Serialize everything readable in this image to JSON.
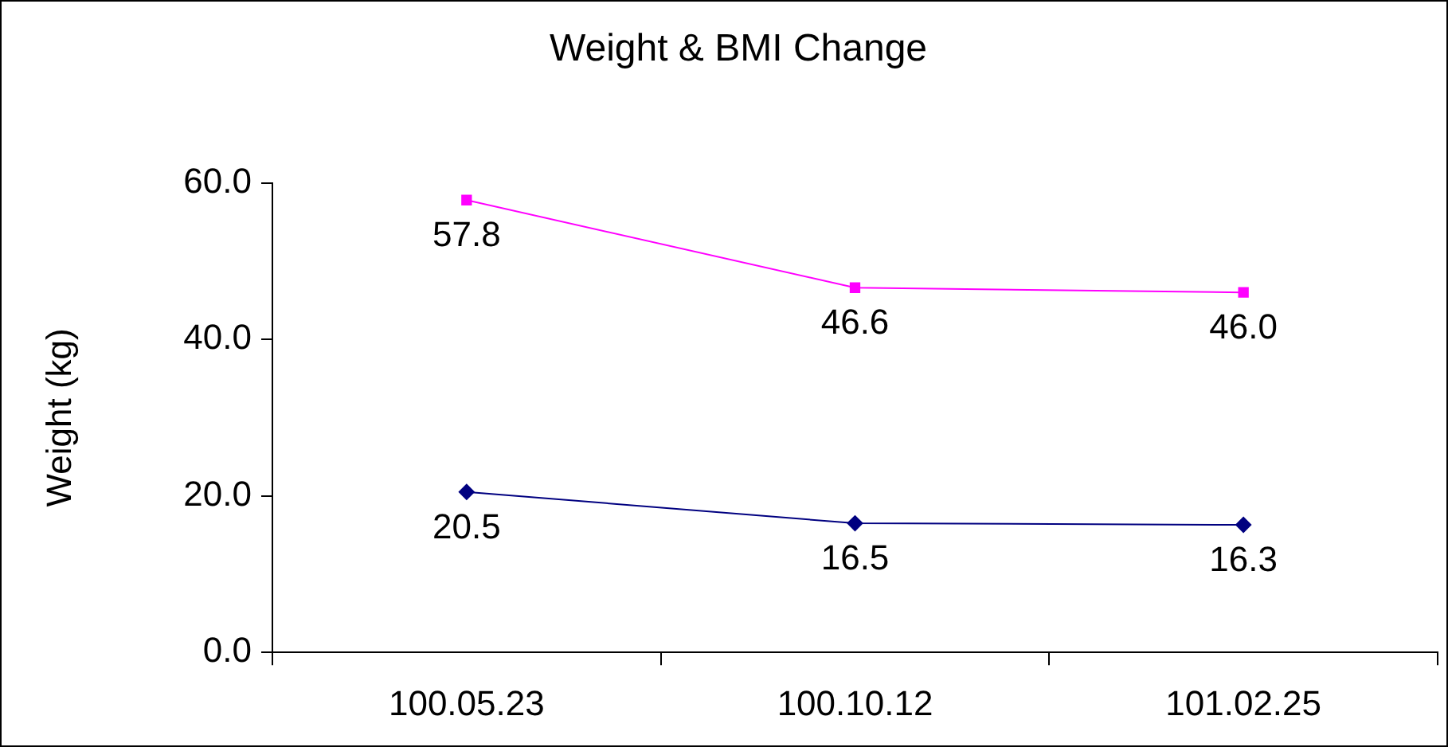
{
  "chart_data": {
    "type": "line",
    "title": "Weight & BMI Change",
    "ylabel": "Weight (kg)",
    "categories": [
      "100.05.23",
      "100.10.12",
      "101.02.25"
    ],
    "series": [
      {
        "color": "#ff00ff",
        "values": [
          57.8,
          46.6,
          46.0
        ],
        "value_labels": [
          "57.8",
          "46.6",
          "46.0"
        ],
        "marker": "square"
      },
      {
        "color": "#000080",
        "values": [
          20.5,
          16.5,
          16.3
        ],
        "value_labels": [
          "20.5",
          "16.5",
          "16.3"
        ],
        "marker": "diamond"
      }
    ],
    "ylim": [
      0,
      60
    ],
    "yticks": [
      {
        "value": 0,
        "label": "0.0"
      },
      {
        "value": 20,
        "label": "20.0"
      },
      {
        "value": 40,
        "label": "40.0"
      },
      {
        "value": 60,
        "label": "60.0"
      }
    ],
    "grid": false,
    "legend": false
  }
}
